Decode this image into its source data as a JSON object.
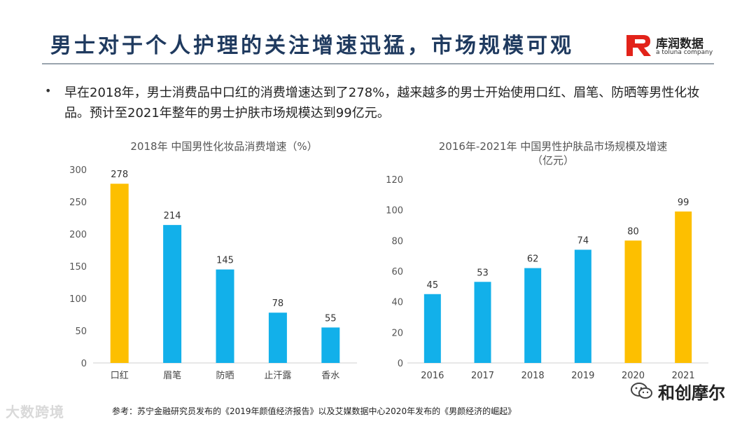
{
  "header": {
    "title": "男士对于个人护理的关注增速迅猛，市场规模可观",
    "logo_name": "库润数据",
    "logo_sub": "a toluna company"
  },
  "bullet": {
    "text": "早在2018年，男士消费品中口红的消费增速达到了278%，越来越多的男士开始使用口红、眉笔、防晒等男性化妆品。预计至2021年整年的男士护肤市场规模达到99亿元。"
  },
  "colors": {
    "blue": "#12b0ea",
    "gold": "#fdbf00",
    "title": "#1f3a5f",
    "axis": "#cfcfcf"
  },
  "chart_data": [
    {
      "type": "bar",
      "title": "2018年  中国男性化妆品消费增速（%）",
      "categories": [
        "口红",
        "眉笔",
        "防晒",
        "止汗露",
        "香水"
      ],
      "values": [
        278,
        214,
        145,
        78,
        55
      ],
      "highlight": [
        true,
        false,
        false,
        false,
        false
      ],
      "yticks": [
        0,
        50,
        100,
        150,
        200,
        250,
        300
      ],
      "ylim": [
        0,
        300
      ],
      "xlabel": "",
      "ylabel": "",
      "grid": false
    },
    {
      "type": "bar",
      "title_lines": [
        "2016年-2021年  中国男性护肤品市场规模及增速",
        "（亿元）"
      ],
      "categories": [
        "2016",
        "2017",
        "2018",
        "2019",
        "2020",
        "2021"
      ],
      "values": [
        45,
        53,
        62,
        74,
        80,
        99
      ],
      "highlight": [
        false,
        false,
        false,
        false,
        true,
        true
      ],
      "yticks": [
        0,
        20,
        40,
        60,
        80,
        100,
        120
      ],
      "ylim": [
        0,
        120
      ],
      "xlabel": "",
      "ylabel": "",
      "grid": false
    }
  ],
  "footer": {
    "source": "参考：苏宁金融研究员发布的《2019年颜值经济报告》以及艾媒数据中心2020年发布的《男颜经济的崛起》",
    "watermark_left": "大数跨境",
    "watermark_right": "和创摩尔"
  }
}
